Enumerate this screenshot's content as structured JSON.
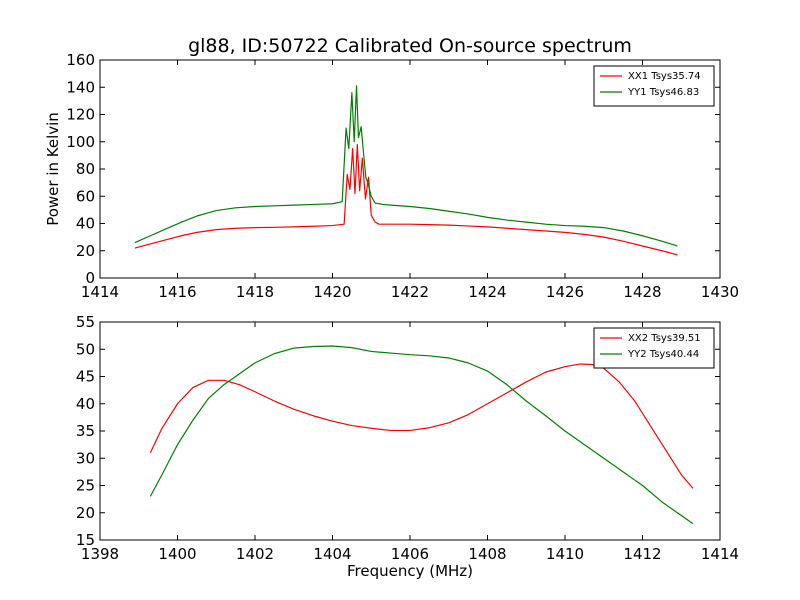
{
  "chart_data": [
    {
      "type": "line",
      "title": "gl88, ID:50722 Calibrated On-source spectrum",
      "xlabel": "",
      "ylabel": "Power in Kelvin",
      "xlim": [
        1414,
        1430
      ],
      "ylim": [
        0,
        160
      ],
      "xticks": [
        1414,
        1416,
        1418,
        1420,
        1422,
        1424,
        1426,
        1428,
        1430
      ],
      "yticks": [
        0,
        20,
        40,
        60,
        80,
        100,
        120,
        140,
        160
      ],
      "legend_position": "top-right",
      "series": [
        {
          "name": "XX1 Tsys35.74",
          "color": "#ff0000",
          "x": [
            1414.9,
            1415.3,
            1415.7,
            1416.1,
            1416.5,
            1417.0,
            1417.5,
            1418.0,
            1418.5,
            1419.0,
            1419.5,
            1420.0,
            1420.3,
            1420.38,
            1420.45,
            1420.52,
            1420.58,
            1420.64,
            1420.7,
            1420.77,
            1420.85,
            1420.93,
            1421.0,
            1421.1,
            1421.2,
            1421.5,
            1422.0,
            1422.5,
            1423.0,
            1423.5,
            1424.0,
            1424.5,
            1425.0,
            1425.5,
            1426.0,
            1426.5,
            1427.0,
            1427.5,
            1428.0,
            1428.5,
            1428.9
          ],
          "values": [
            22,
            25,
            28,
            31,
            33.5,
            35.5,
            36.5,
            37,
            37.2,
            37.5,
            38,
            38.5,
            39.5,
            76,
            65,
            95,
            62,
            98,
            64,
            88,
            58,
            74,
            46,
            41,
            39.5,
            39.5,
            39.5,
            39.2,
            38.8,
            38.2,
            37.5,
            36.5,
            35.5,
            34.5,
            33.5,
            32,
            30,
            27,
            23.5,
            20,
            17
          ]
        },
        {
          "name": "YY1 Tsys46.83",
          "color": "#008000",
          "x": [
            1414.9,
            1415.3,
            1415.7,
            1416.1,
            1416.5,
            1417.0,
            1417.5,
            1418.0,
            1418.5,
            1419.0,
            1419.5,
            1420.0,
            1420.25,
            1420.35,
            1420.42,
            1420.5,
            1420.56,
            1420.62,
            1420.67,
            1420.74,
            1420.8,
            1420.86,
            1420.92,
            1421.0,
            1421.1,
            1421.3,
            1421.5,
            1422.0,
            1422.5,
            1423.0,
            1423.5,
            1424.0,
            1424.5,
            1425.0,
            1425.5,
            1426.0,
            1426.5,
            1427.0,
            1427.5,
            1428.0,
            1428.5,
            1428.9
          ],
          "values": [
            26,
            31,
            36,
            41,
            45.5,
            49.5,
            51.5,
            52.5,
            53,
            53.5,
            54,
            54.5,
            56,
            110,
            95,
            136,
            100,
            141,
            103,
            111,
            92,
            74,
            69,
            60,
            55,
            54,
            53.5,
            52.5,
            51,
            49,
            47,
            44.5,
            42.5,
            41,
            39.5,
            38.5,
            38,
            37,
            34.5,
            31,
            27,
            23.5
          ]
        }
      ]
    },
    {
      "type": "line",
      "title": "",
      "xlabel": "Frequency (MHz)",
      "ylabel": "",
      "xlim": [
        1398,
        1414
      ],
      "ylim": [
        15,
        55
      ],
      "xticks": [
        1398,
        1400,
        1402,
        1404,
        1406,
        1408,
        1410,
        1412,
        1414
      ],
      "yticks": [
        15,
        20,
        25,
        30,
        35,
        40,
        45,
        50,
        55
      ],
      "legend_position": "top-right",
      "series": [
        {
          "name": "XX2 Tsys39.51",
          "color": "#ff0000",
          "x": [
            1399.3,
            1399.6,
            1400.0,
            1400.4,
            1400.8,
            1401.2,
            1401.6,
            1402.0,
            1402.5,
            1403.0,
            1403.5,
            1404.0,
            1404.5,
            1405.0,
            1405.5,
            1406.0,
            1406.5,
            1407.0,
            1407.5,
            1408.0,
            1408.5,
            1409.0,
            1409.5,
            1410.0,
            1410.4,
            1410.7,
            1411.0,
            1411.4,
            1411.8,
            1412.2,
            1412.6,
            1413.0,
            1413.3
          ],
          "values": [
            31,
            35.5,
            40,
            43,
            44.3,
            44.3,
            43.5,
            42.2,
            40.5,
            39,
            37.8,
            36.8,
            36,
            35.5,
            35.1,
            35.1,
            35.6,
            36.5,
            38,
            40,
            42,
            44,
            45.8,
            46.8,
            47.3,
            47.2,
            46.5,
            44,
            40.5,
            36,
            31.5,
            27,
            24.5
          ]
        },
        {
          "name": "YY2 Tsys40.44",
          "color": "#008000",
          "x": [
            1399.3,
            1399.6,
            1400.0,
            1400.4,
            1400.8,
            1401.2,
            1401.6,
            1402.0,
            1402.5,
            1403.0,
            1403.5,
            1404.0,
            1404.5,
            1405.0,
            1405.5,
            1406.0,
            1406.5,
            1407.0,
            1407.5,
            1408.0,
            1408.5,
            1409.0,
            1409.5,
            1410.0,
            1410.5,
            1411.0,
            1411.5,
            1412.0,
            1412.5,
            1413.0,
            1413.3
          ],
          "values": [
            23,
            27,
            32.5,
            37,
            41,
            43.5,
            45.5,
            47.5,
            49.2,
            50.2,
            50.5,
            50.6,
            50.3,
            49.6,
            49.3,
            49,
            48.8,
            48.4,
            47.5,
            46,
            43.5,
            40.5,
            37.8,
            35,
            32.5,
            30,
            27.5,
            25,
            22,
            19.5,
            18
          ]
        }
      ]
    }
  ]
}
